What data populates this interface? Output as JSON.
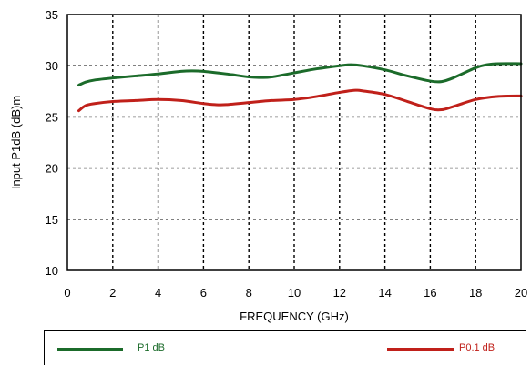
{
  "chart_data": {
    "type": "line",
    "title": "",
    "xlabel": "FREQUENCY (GHz)",
    "ylabel": "Input P1dB (dB)m",
    "xlim": [
      0,
      20
    ],
    "ylim": [
      10,
      35
    ],
    "xticks": [
      "0",
      "2",
      "4",
      "6",
      "8",
      "10",
      "12",
      "14",
      "16",
      "18",
      "20"
    ],
    "yticks": [
      "10",
      "15",
      "20",
      "25",
      "30",
      "35"
    ],
    "grid": true,
    "legend_position": "bottom",
    "series": [
      {
        "name": "P1 dB",
        "color": "#1b6b2a",
        "x": [
          0.5,
          0.8,
          1.2,
          2.0,
          3.0,
          4.0,
          5.0,
          5.5,
          6.0,
          7.0,
          8.0,
          8.5,
          9.0,
          10.0,
          11.0,
          12.0,
          12.5,
          13.0,
          14.0,
          15.0,
          16.0,
          16.5,
          17.0,
          18.0,
          18.5,
          19.0,
          20.0
        ],
        "values": [
          28.1,
          28.4,
          28.6,
          28.8,
          29.0,
          29.2,
          29.45,
          29.5,
          29.45,
          29.2,
          28.9,
          28.85,
          28.9,
          29.3,
          29.7,
          30.0,
          30.1,
          30.0,
          29.6,
          29.0,
          28.5,
          28.45,
          28.8,
          29.8,
          30.1,
          30.2,
          30.2
        ]
      },
      {
        "name": "P0.1 dB",
        "color": "#c0201a",
        "x": [
          0.5,
          0.8,
          1.2,
          2.0,
          3.0,
          4.0,
          5.0,
          6.0,
          6.5,
          7.0,
          8.0,
          9.0,
          10.0,
          11.0,
          12.0,
          12.7,
          13.0,
          14.0,
          15.0,
          16.0,
          16.5,
          17.0,
          18.0,
          19.0,
          20.0
        ],
        "values": [
          25.6,
          26.1,
          26.3,
          26.5,
          26.6,
          26.7,
          26.6,
          26.3,
          26.2,
          26.2,
          26.4,
          26.6,
          26.7,
          27.0,
          27.4,
          27.6,
          27.55,
          27.2,
          26.5,
          25.8,
          25.7,
          26.0,
          26.7,
          27.0,
          27.05
        ]
      }
    ]
  }
}
